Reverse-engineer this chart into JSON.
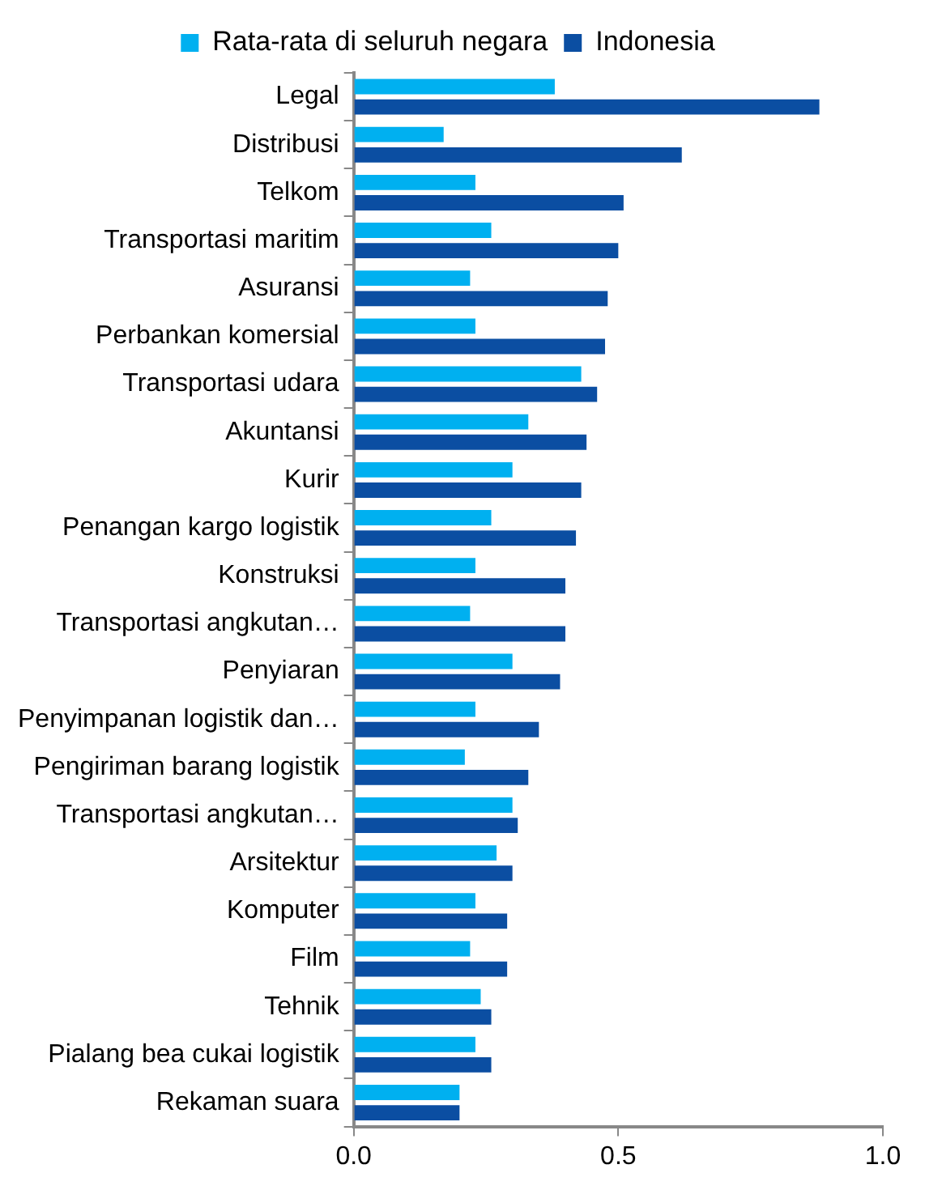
{
  "chart_data": {
    "type": "bar",
    "orientation": "horizontal",
    "categories": [
      "Legal",
      "Distribusi",
      "Telkom",
      "Transportasi maritim",
      "Asuransi",
      "Perbankan komersial",
      "Transportasi udara",
      "Akuntansi",
      "Kurir",
      "Penangan kargo logistik",
      "Konstruksi",
      "Transportasi angkutan…",
      "Penyiaran",
      "Penyimpanan logistik dan…",
      "Pengiriman barang logistik",
      "Transportasi angkutan…",
      "Arsitektur",
      "Komputer",
      "Film",
      "Tehnik",
      "Pialang bea cukai logistik",
      "Rekaman suara"
    ],
    "series": [
      {
        "name": "Rata-rata di seluruh negara",
        "color": "#00b0f0",
        "values": [
          0.38,
          0.17,
          0.23,
          0.26,
          0.22,
          0.23,
          0.43,
          0.33,
          0.3,
          0.26,
          0.23,
          0.22,
          0.3,
          0.23,
          0.21,
          0.3,
          0.27,
          0.23,
          0.22,
          0.24,
          0.23,
          0.2
        ]
      },
      {
        "name": "Indonesia",
        "color": "#0b4ea2",
        "values": [
          0.88,
          0.62,
          0.51,
          0.5,
          0.48,
          0.475,
          0.46,
          0.44,
          0.43,
          0.42,
          0.4,
          0.4,
          0.39,
          0.35,
          0.33,
          0.31,
          0.3,
          0.29,
          0.29,
          0.26,
          0.26,
          0.2
        ]
      }
    ],
    "xlim": [
      0,
      1
    ],
    "xticks": [
      {
        "value": 0,
        "label": "0.0"
      },
      {
        "value": 0.5,
        "label": "0.5"
      },
      {
        "value": 1,
        "label": "1.0"
      }
    ],
    "grid": false,
    "legend": "top"
  }
}
